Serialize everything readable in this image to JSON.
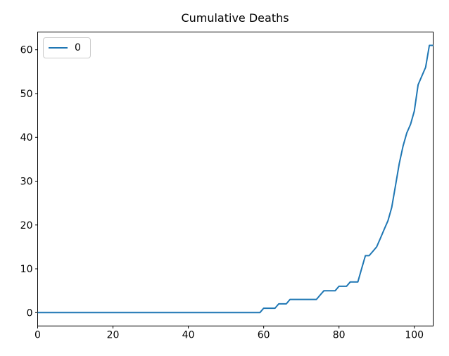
{
  "chart_data": {
    "type": "line",
    "title": "Cumulative Deaths",
    "xlabel": "",
    "ylabel": "",
    "xlim": [
      0,
      105
    ],
    "ylim": [
      -3.05,
      64.05
    ],
    "xticks": [
      0,
      20,
      40,
      60,
      80,
      100
    ],
    "yticks": [
      0,
      10,
      20,
      30,
      40,
      50,
      60
    ],
    "grid": false,
    "legend_position": "upper-left",
    "line_color": "#1f77b4",
    "x": [
      0,
      1,
      2,
      3,
      4,
      5,
      6,
      7,
      8,
      9,
      10,
      11,
      12,
      13,
      14,
      15,
      16,
      17,
      18,
      19,
      20,
      21,
      22,
      23,
      24,
      25,
      26,
      27,
      28,
      29,
      30,
      31,
      32,
      33,
      34,
      35,
      36,
      37,
      38,
      39,
      40,
      41,
      42,
      43,
      44,
      45,
      46,
      47,
      48,
      49,
      50,
      51,
      52,
      53,
      54,
      55,
      56,
      57,
      58,
      59,
      60,
      61,
      62,
      63,
      64,
      65,
      66,
      67,
      68,
      69,
      70,
      71,
      72,
      73,
      74,
      75,
      76,
      77,
      78,
      79,
      80,
      81,
      82,
      83,
      84,
      85,
      86,
      87,
      88,
      89,
      90,
      91,
      92,
      93,
      94,
      95,
      96,
      97,
      98,
      99,
      100,
      101,
      102,
      103,
      104,
      105
    ],
    "series": [
      {
        "name": "0",
        "color": "#1f77b4",
        "values": [
          0,
          0,
          0,
          0,
          0,
          0,
          0,
          0,
          0,
          0,
          0,
          0,
          0,
          0,
          0,
          0,
          0,
          0,
          0,
          0,
          0,
          0,
          0,
          0,
          0,
          0,
          0,
          0,
          0,
          0,
          0,
          0,
          0,
          0,
          0,
          0,
          0,
          0,
          0,
          0,
          0,
          0,
          0,
          0,
          0,
          0,
          0,
          0,
          0,
          0,
          0,
          0,
          0,
          0,
          0,
          0,
          0,
          0,
          0,
          0,
          1,
          1,
          1,
          1,
          2,
          2,
          2,
          3,
          3,
          3,
          3,
          3,
          3,
          3,
          3,
          4,
          5,
          5,
          5,
          5,
          6,
          6,
          6,
          7,
          7,
          7,
          10,
          13,
          13,
          14,
          15,
          17,
          19,
          21,
          24,
          29,
          34,
          38,
          41,
          43,
          46,
          52,
          54,
          56,
          61,
          61
        ]
      }
    ]
  }
}
